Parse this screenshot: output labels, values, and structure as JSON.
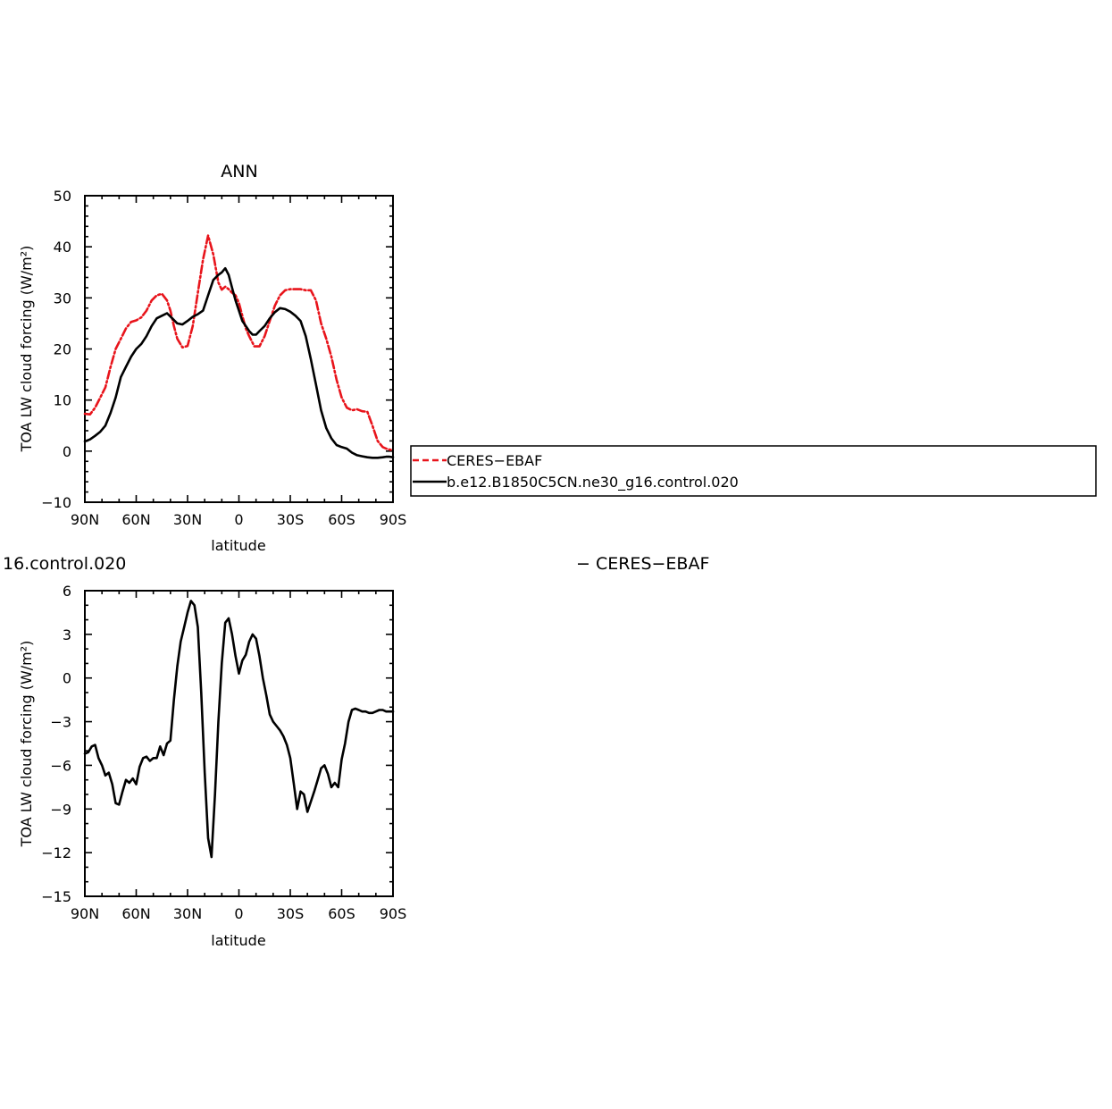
{
  "chart_data": [
    {
      "type": "line",
      "title": "ANN",
      "xlabel": "latitude",
      "ylabel": "TOA LW cloud forcing (W/m²)",
      "xlim": [
        90,
        -90
      ],
      "ylim": [
        -10,
        50
      ],
      "x_ticks": [
        90,
        60,
        30,
        0,
        -30,
        -60,
        -90
      ],
      "x_tick_labels": [
        "90N",
        "60N",
        "30N",
        "0",
        "30S",
        "60S",
        "90S"
      ],
      "y_ticks": [
        -10,
        0,
        10,
        20,
        30,
        40,
        50
      ],
      "y_tick_labels": [
        "−10",
        "0",
        "10",
        "20",
        "30",
        "40",
        "50"
      ],
      "legend": {
        "placement": "right",
        "entries": [
          "CERES−EBAF",
          "b.e12.B1850C5CN.ne30_g16.control.020"
        ]
      },
      "series": [
        {
          "name": "CERES−EBAF",
          "color": "#e8141b",
          "dash": "dashed",
          "x": [
            90,
            87,
            84,
            81,
            78,
            75,
            72,
            69,
            66,
            63,
            60,
            57,
            54,
            51,
            48,
            45,
            42,
            40,
            38,
            36,
            33,
            30,
            27,
            24,
            21,
            18,
            15,
            12,
            10,
            8,
            6,
            4,
            2,
            0,
            -2,
            -4,
            -6,
            -9,
            -12,
            -15,
            -18,
            -21,
            -24,
            -27,
            -30,
            -33,
            -36,
            -39,
            -42,
            -45,
            -48,
            -51,
            -54,
            -57,
            -60,
            -63,
            -66,
            -69,
            -72,
            -75,
            -78,
            -81,
            -84,
            -86,
            -88,
            -90
          ],
          "y": [
            7.3,
            7.2,
            8.5,
            10.5,
            12.5,
            16.5,
            20,
            22,
            24,
            25.3,
            25.6,
            26.2,
            27.5,
            29.5,
            30.5,
            30.8,
            29.5,
            27.5,
            24.5,
            22,
            20.3,
            20.6,
            24.5,
            31,
            37.5,
            42.2,
            38.5,
            33,
            31.6,
            32.2,
            31.7,
            31,
            30.5,
            29,
            26.5,
            24,
            22.5,
            20.5,
            20.5,
            22.5,
            25.5,
            28.5,
            30.5,
            31.5,
            31.7,
            31.7,
            31.7,
            31.5,
            31.5,
            29.5,
            25,
            22,
            18.5,
            14,
            10.5,
            8.5,
            8,
            8.2,
            7.8,
            7.7,
            5,
            2,
            0.8,
            0.5,
            0.3,
            0.2
          ]
        },
        {
          "name": "b.e12.B1850C5CN.ne30_g16.control.020",
          "color": "#000000",
          "dash": "solid",
          "x": [
            90,
            87,
            84,
            81,
            78,
            75,
            72,
            69,
            66,
            63,
            60,
            57,
            54,
            51,
            48,
            45,
            42,
            39,
            36,
            33,
            30,
            27,
            24,
            21,
            18,
            15,
            12,
            10,
            8,
            6,
            4,
            2,
            0,
            -2,
            -4,
            -6,
            -8,
            -10,
            -12,
            -15,
            -18,
            -21,
            -24,
            -27,
            -30,
            -33,
            -36,
            -39,
            -42,
            -45,
            -48,
            -51,
            -54,
            -57,
            -60,
            -63,
            -66,
            -69,
            -72,
            -75,
            -78,
            -81,
            -84,
            -86,
            -88,
            -90
          ],
          "y": [
            1.9,
            2.3,
            3,
            3.8,
            5,
            7.5,
            10.5,
            14.5,
            16.5,
            18.5,
            20,
            21,
            22.5,
            24.5,
            26,
            26.5,
            27,
            26,
            25,
            24.8,
            25.5,
            26.3,
            26.8,
            27.5,
            30.5,
            33.5,
            34.5,
            35,
            35.8,
            34.5,
            32,
            29.5,
            27.5,
            25.5,
            24.5,
            23.5,
            22.8,
            22.8,
            23.5,
            24.5,
            26,
            27.2,
            28,
            27.8,
            27.3,
            26.5,
            25.5,
            22.5,
            18,
            13,
            8,
            4.5,
            2.5,
            1.2,
            0.8,
            0.5,
            -0.3,
            -0.8,
            -1,
            -1.2,
            -1.3,
            -1.3,
            -1.2,
            -1.1,
            -1.1,
            -1.2
          ]
        }
      ]
    },
    {
      "type": "line",
      "title": "16.control.020",
      "right_title": "− CERES−EBAF",
      "xlabel": "latitude",
      "ylabel": "TOA LW cloud forcing (W/m²)",
      "xlim": [
        90,
        -90
      ],
      "ylim": [
        -15,
        6
      ],
      "x_ticks": [
        90,
        60,
        30,
        0,
        -30,
        -60,
        -90
      ],
      "x_tick_labels": [
        "90N",
        "60N",
        "30N",
        "0",
        "30S",
        "60S",
        "90S"
      ],
      "y_ticks": [
        -15,
        -12,
        -9,
        -6,
        -3,
        0,
        3,
        6
      ],
      "y_tick_labels": [
        "−15",
        "−12",
        "−9",
        "−6",
        "−3",
        "0",
        "3",
        "6"
      ],
      "series": [
        {
          "color": "#000000",
          "dash": "solid",
          "x": [
            90,
            88,
            86,
            84,
            82,
            80,
            78,
            76,
            74,
            72,
            70,
            68,
            66,
            64,
            62,
            60,
            58,
            56,
            54,
            52,
            50,
            48,
            46,
            44,
            42,
            40,
            38,
            36,
            34,
            32,
            30,
            28,
            26,
            24,
            22,
            20,
            18,
            16,
            14,
            12,
            10,
            8,
            6,
            4,
            2,
            0,
            -2,
            -4,
            -6,
            -8,
            -10,
            -12,
            -14,
            -16,
            -18,
            -20,
            -22,
            -24,
            -26,
            -28,
            -30,
            -32,
            -34,
            -36,
            -38,
            -40,
            -42,
            -44,
            -46,
            -48,
            -50,
            -52,
            -54,
            -56,
            -58,
            -60,
            -62,
            -64,
            -66,
            -68,
            -70,
            -72,
            -74,
            -76,
            -78,
            -80,
            -82,
            -84,
            -86,
            -88,
            -90
          ],
          "y": [
            -5.2,
            -5.1,
            -4.7,
            -4.6,
            -5.5,
            -6,
            -6.7,
            -6.5,
            -7.3,
            -8.6,
            -8.7,
            -7.8,
            -7,
            -7.2,
            -6.9,
            -7.3,
            -6.1,
            -5.5,
            -5.4,
            -5.7,
            -5.5,
            -5.5,
            -4.7,
            -5.3,
            -4.5,
            -4.3,
            -1.5,
            0.8,
            2.5,
            3.5,
            4.5,
            5.3,
            5,
            3.5,
            -1,
            -6.5,
            -11,
            -12.3,
            -8,
            -3,
            1,
            3.8,
            4.1,
            3,
            1.5,
            0.3,
            1.2,
            1.6,
            2.5,
            3,
            2.7,
            1.5,
            0,
            -1.2,
            -2.5,
            -3,
            -3.3,
            -3.6,
            -4,
            -4.6,
            -5.5,
            -7.2,
            -9,
            -7.8,
            -8,
            -9.2,
            -8.5,
            -7.8,
            -7,
            -6.2,
            -6,
            -6.6,
            -7.5,
            -7.2,
            -7.5,
            -5.6,
            -4.5,
            -3,
            -2.2,
            -2.1,
            -2.2,
            -2.3,
            -2.3,
            -2.4,
            -2.4,
            -2.3,
            -2.2,
            -2.2,
            -2.3,
            -2.3,
            -2.3
          ]
        }
      ]
    }
  ]
}
